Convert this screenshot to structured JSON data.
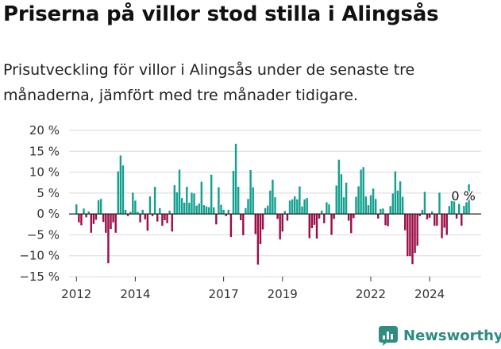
{
  "header": {
    "title": "Priserna på villor stod stilla i Alingsås",
    "subtitle": "Prisutveckling för villor i Alingsås under de senaste tre månaderna, jämfört med tre månader tidigare."
  },
  "brand": {
    "name": "Newsworthy",
    "icon": "newsworthy-logo-icon",
    "color": "#2f8c80"
  },
  "colors": {
    "positive": "#13a08f",
    "negative": "#9c0d47"
  },
  "chart_data": {
    "type": "bar",
    "title": "",
    "xlabel": "",
    "ylabel": "",
    "ylim": [
      -15,
      20
    ],
    "yticks": [
      20,
      15,
      10,
      5,
      0,
      -5,
      -10,
      -15
    ],
    "ytick_labels": [
      "20 %",
      "15 %",
      "10 %",
      "5 %",
      "0 %",
      "−5 %",
      "−10 %",
      "−15 %"
    ],
    "xlim": [
      2011.75,
      2025.75
    ],
    "xticks": [
      2012,
      2014,
      2017,
      2019,
      2022,
      2024
    ],
    "xtick_labels": [
      "2012",
      "2014",
      "2017",
      "2019",
      "2022",
      "2024"
    ],
    "grid": true,
    "series": [
      {
        "start": 2012,
        "step_months": 1,
        "values": [
          2.3,
          -2,
          -2.7,
          1.3,
          -0.8,
          0.6,
          -4.5,
          -2.4,
          -1.4,
          3.3,
          3.6,
          -1.9,
          -4.5,
          -11.8,
          -3.6,
          -2,
          -4.5,
          10.2,
          14,
          11.6,
          1,
          -0.5,
          0.5,
          5.1,
          3.2,
          0.5,
          -2,
          1,
          -1.3,
          -4,
          4.2,
          -0.5,
          6.5,
          -1.8,
          1.4,
          -2.8,
          -1.5,
          -2.2,
          0.8,
          -4.2,
          6.9,
          5.2,
          10.6,
          3.8,
          2.7,
          6.5,
          2.7,
          5.1,
          4.9,
          2,
          2.5,
          7.7,
          2.1,
          1.8,
          1.6,
          9.4,
          1.6,
          -2.5,
          6.4,
          2.2,
          1,
          -0.5,
          1,
          -5.5,
          10.3,
          16.8,
          6.5,
          -1.5,
          -5.1,
          1.4,
          3.6,
          10.5,
          6.4,
          -4.8,
          -12.1,
          -7.2,
          -3.7,
          1.4,
          2,
          5.6,
          8.2,
          4,
          -1.2,
          -6.1,
          -4.2,
          0.7,
          -1.6,
          3.2,
          3.5,
          4.2,
          3.5,
          6.6,
          1.8,
          3.5,
          3.8,
          -5.8,
          -3.4,
          -2.6,
          -5.9,
          -1.1,
          0.8,
          -2.2,
          2.8,
          2.3,
          -5,
          -1.2,
          6.8,
          13,
          9.5,
          4,
          7.5,
          -1.6,
          -4.6,
          -1,
          4.1,
          6.6,
          10.6,
          11.2,
          4.2,
          2.1,
          4.5,
          6.1,
          3.6,
          -1.1,
          1.2,
          1.3,
          -2.7,
          -2.9,
          1.9,
          4.9,
          10.2,
          5.6,
          7.8,
          4.1,
          -3.9,
          -10.1,
          -10.1,
          -12,
          -9.3,
          -7.6,
          -0.5,
          1,
          5.3,
          -1.3,
          -0.9,
          0.6,
          -2.8,
          -2.8,
          5.1,
          -5.8,
          -3.3,
          -5,
          1.9,
          3.1,
          4.2,
          -1.1,
          2.4,
          -2.8,
          1.9,
          2.8,
          7.1
        ]
      }
    ],
    "annotation": {
      "label": "0 %",
      "value": 0
    }
  }
}
